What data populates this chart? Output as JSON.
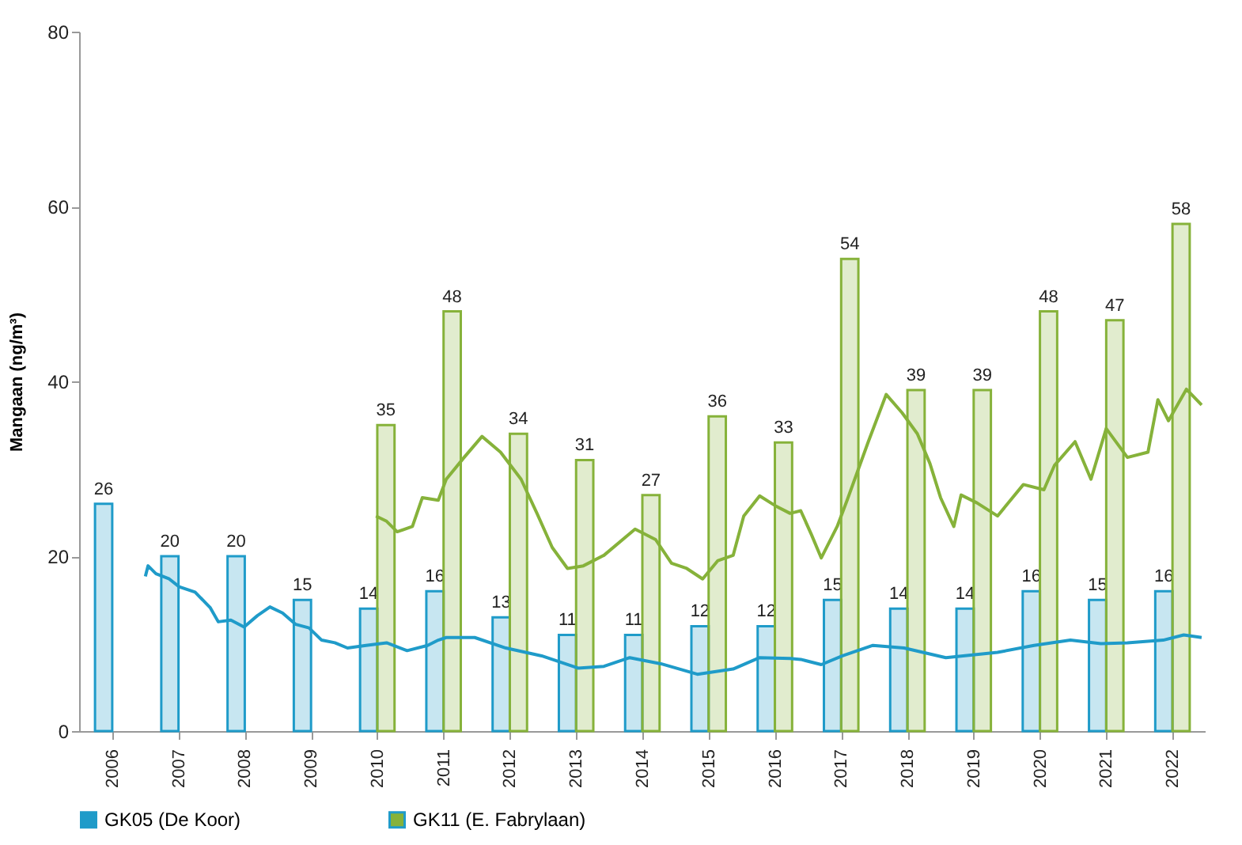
{
  "chart_data": {
    "type": "bar",
    "ylabel": "Mangaan (ng/m³)",
    "x": [
      2006,
      2007,
      2008,
      2009,
      2010,
      2011,
      2012,
      2013,
      2014,
      2015,
      2016,
      2017,
      2018,
      2019,
      2020,
      2021,
      2022
    ],
    "xlim": [
      2005.5,
      2022.5
    ],
    "xticks": [
      2006,
      2007,
      2008,
      2009,
      2010,
      2011,
      2012,
      2013,
      2014,
      2015,
      2016,
      2017,
      2018,
      2019,
      2020,
      2021,
      2022
    ],
    "ylim": [
      0,
      80
    ],
    "yticks": [
      0,
      20,
      40,
      60,
      80
    ],
    "grid": false,
    "legend": "bottom",
    "series": [
      {
        "name": "GK05 (De Koor)",
        "color": "#1f9bc9",
        "values": [
          26,
          20,
          20,
          15,
          14,
          16,
          13,
          11,
          11,
          12,
          12,
          15,
          14,
          14,
          16,
          15,
          16
        ],
        "value_labels": [
          "26",
          "20",
          "20",
          "15",
          "14",
          "16",
          "13",
          "11",
          "11",
          "12",
          "12",
          "15",
          "14",
          "14",
          "16",
          "15",
          "16"
        ]
      },
      {
        "name": "GK11 (E. Fabrylaan)",
        "color": "#86b23a",
        "values": [
          null,
          null,
          null,
          null,
          35,
          48,
          34,
          31,
          27,
          36,
          33,
          54,
          39,
          39,
          48,
          47,
          58
        ],
        "value_labels": [
          null,
          null,
          null,
          null,
          "35",
          "48",
          "34",
          "31",
          "27",
          "36",
          "33",
          "54",
          "39",
          "39",
          "48",
          "47",
          "58"
        ]
      },
      {
        "type": "line",
        "color": "#1f9bc9",
        "x": [
          2006.5,
          2006.54,
          2006.66,
          2006.86,
          2007.01,
          2007.25,
          2007.48,
          2007.6,
          2007.79,
          2007.99,
          2008.19,
          2008.38,
          2008.57,
          2008.77,
          2008.97,
          2009.16,
          2009.36,
          2009.55,
          2009.83,
          2010.14,
          2010.45,
          2010.76,
          2010.92,
          2011.04,
          2011.47,
          2011.94,
          2012.48,
          2013.03,
          2013.42,
          2013.81,
          2014.28,
          2014.83,
          2015.37,
          2015.77,
          2016.23,
          2016.39,
          2016.7,
          2017.02,
          2017.48,
          2017.95,
          2018.58,
          2019.36,
          2019.91,
          2020.46,
          2020.92,
          2021.32,
          2021.86,
          2022.17,
          2022.44
        ],
        "values": [
          17.7,
          18.9,
          18.0,
          17.4,
          16.5,
          15.9,
          14.1,
          12.5,
          12.7,
          11.9,
          13.2,
          14.2,
          13.5,
          12.2,
          11.8,
          10.4,
          10.1,
          9.5,
          9.8,
          10.1,
          9.2,
          9.8,
          10.4,
          10.7,
          10.7,
          9.5,
          8.6,
          7.2,
          7.4,
          8.4,
          7.7,
          6.5,
          7.1,
          8.4,
          8.3,
          8.2,
          7.6,
          8.6,
          9.8,
          9.5,
          8.4,
          9.0,
          9.8,
          10.4,
          10.0,
          10.1,
          10.4,
          11.0,
          10.7
        ]
      },
      {
        "type": "line",
        "color": "#86b23a",
        "x": [
          2009.98,
          2010.14,
          2010.3,
          2010.53,
          2010.68,
          2010.92,
          2011.04,
          2011.31,
          2011.58,
          2011.86,
          2012.17,
          2012.41,
          2012.64,
          2012.87,
          2013.11,
          2013.42,
          2013.89,
          2014.2,
          2014.44,
          2014.67,
          2014.91,
          2015.14,
          2015.37,
          2015.53,
          2015.77,
          2016.0,
          2016.23,
          2016.39,
          2016.55,
          2016.7,
          2016.94,
          2017.09,
          2017.41,
          2017.68,
          2017.92,
          2018.15,
          2018.34,
          2018.5,
          2018.7,
          2018.81,
          2019.05,
          2019.36,
          2019.75,
          2020.06,
          2020.22,
          2020.53,
          2020.77,
          2021.0,
          2021.32,
          2021.63,
          2021.78,
          2021.94,
          2022.21,
          2022.44
        ],
        "values": [
          24.6,
          24.0,
          22.8,
          23.4,
          26.7,
          26.4,
          28.8,
          31.3,
          33.7,
          31.9,
          28.8,
          24.9,
          21.0,
          18.6,
          18.9,
          20.1,
          23.1,
          21.9,
          19.2,
          18.6,
          17.4,
          19.5,
          20.1,
          24.6,
          26.9,
          25.8,
          24.9,
          25.2,
          22.5,
          19.8,
          23.4,
          26.4,
          33.1,
          38.5,
          36.4,
          34.0,
          30.6,
          26.7,
          23.4,
          27.0,
          26.1,
          24.6,
          28.2,
          27.6,
          30.4,
          33.1,
          28.8,
          34.6,
          31.3,
          31.9,
          37.9,
          35.5,
          39.1,
          37.3
        ]
      }
    ]
  }
}
